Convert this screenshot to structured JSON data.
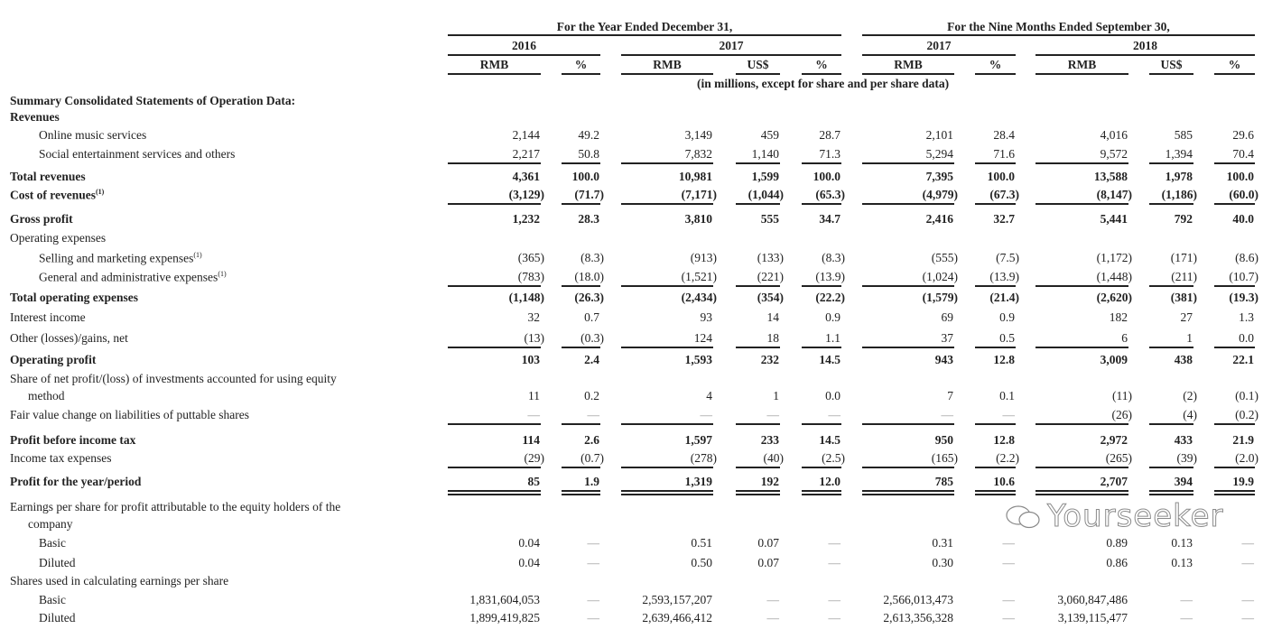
{
  "header": {
    "group1": "For the Year Ended December 31,",
    "group2": "For the Nine Months Ended September 30,",
    "years": [
      "2016",
      "2017",
      "2017",
      "2018"
    ],
    "columns": [
      "RMB",
      "%",
      "RMB",
      "US$",
      "%",
      "RMB",
      "%",
      "RMB",
      "US$",
      "%"
    ],
    "note": "(in millions, except for share and per share data)"
  },
  "rows": [
    {
      "label": "Summary Consolidated Statements of Operation Data:",
      "bold": true
    },
    {
      "label": "Revenues",
      "bold": true
    },
    {
      "label": "Online music services",
      "indent": true,
      "values": [
        "2,144",
        "49.2",
        "3,149",
        "459",
        "28.7",
        "2,101",
        "28.4",
        "4,016",
        "585",
        "29.6"
      ]
    },
    {
      "label": "Social entertainment services and others",
      "indent": true,
      "rule": "single",
      "values": [
        "2,217",
        "50.8",
        "7,832",
        "1,140",
        "71.3",
        "5,294",
        "71.6",
        "9,572",
        "1,394",
        "70.4"
      ]
    },
    {
      "label": "Total revenues",
      "bold": true,
      "values": [
        "4,361",
        "100.0",
        "10,981",
        "1,599",
        "100.0",
        "7,395",
        "100.0",
        "13,588",
        "1,978",
        "100.0"
      ]
    },
    {
      "label": "Cost of revenues",
      "sup": "(1)",
      "bold": true,
      "rule": "single",
      "values": [
        "(3,129)",
        "(71.7)",
        "(7,171)",
        "(1,044)",
        "(65.3)",
        "(4,979)",
        "(67.3)",
        "(8,147)",
        "(1,186)",
        "(60.0)"
      ]
    },
    {
      "label": "Gross profit",
      "bold": true,
      "values": [
        "1,232",
        "28.3",
        "3,810",
        "555",
        "34.7",
        "2,416",
        "32.7",
        "5,441",
        "792",
        "40.0"
      ]
    },
    {
      "label": "Operating expenses"
    },
    {
      "label": "Selling and marketing expenses",
      "sup": "(1)",
      "indent": true,
      "values": [
        "(365)",
        "(8.3)",
        "(913)",
        "(133)",
        "(8.3)",
        "(555)",
        "(7.5)",
        "(1,172)",
        "(171)",
        "(8.6)"
      ]
    },
    {
      "label": "General and administrative expenses",
      "sup": "(1)",
      "indent": true,
      "rule": "single",
      "values": [
        "(783)",
        "(18.0)",
        "(1,521)",
        "(221)",
        "(13.9)",
        "(1,024)",
        "(13.9)",
        "(1,448)",
        "(211)",
        "(10.7)"
      ]
    },
    {
      "label": "Total operating expenses",
      "bold": true,
      "values": [
        "(1,148)",
        "(26.3)",
        "(2,434)",
        "(354)",
        "(22.2)",
        "(1,579)",
        "(21.4)",
        "(2,620)",
        "(381)",
        "(19.3)"
      ]
    },
    {
      "label": "Interest income",
      "values": [
        "32",
        "0.7",
        "93",
        "14",
        "0.9",
        "69",
        "0.9",
        "182",
        "27",
        "1.3"
      ]
    },
    {
      "label": "Other (losses)/gains, net",
      "rule": "single",
      "values": [
        "(13)",
        "(0.3)",
        "124",
        "18",
        "1.1",
        "37",
        "0.5",
        "6",
        "1",
        "0.0"
      ]
    },
    {
      "label": "Operating profit",
      "bold": true,
      "values": [
        "103",
        "2.4",
        "1,593",
        "232",
        "14.5",
        "943",
        "12.8",
        "3,009",
        "438",
        "22.1"
      ]
    },
    {
      "label": "Share of net profit/(loss) of investments accounted for using equity",
      "label2": "method",
      "values": [
        "11",
        "0.2",
        "4",
        "1",
        "0.0",
        "7",
        "0.1",
        "(11)",
        "(2)",
        "(0.1)"
      ]
    },
    {
      "label": "Fair value change on liabilities of puttable shares",
      "rule": "single",
      "values": [
        "—",
        "—",
        "—",
        "—",
        "—",
        "—",
        "—",
        "(26)",
        "(4)",
        "(0.2)"
      ]
    },
    {
      "label": "Profit before income tax",
      "bold": true,
      "values": [
        "114",
        "2.6",
        "1,597",
        "233",
        "14.5",
        "950",
        "12.8",
        "2,972",
        "433",
        "21.9"
      ]
    },
    {
      "label": "Income tax expenses",
      "rule": "single",
      "values": [
        "(29)",
        "(0.7)",
        "(278)",
        "(40)",
        "(2.5)",
        "(165)",
        "(2.2)",
        "(265)",
        "(39)",
        "(2.0)"
      ]
    },
    {
      "label": "Profit for the year/period",
      "bold": true,
      "rule": "double",
      "values": [
        "85",
        "1.9",
        "1,319",
        "192",
        "12.0",
        "785",
        "10.6",
        "2,707",
        "394",
        "19.9"
      ]
    },
    {
      "label": "Earnings per share for profit attributable to the equity holders of the",
      "label2": "company"
    },
    {
      "label": "Basic",
      "indent": true,
      "values": [
        "0.04",
        "—",
        "0.51",
        "0.07",
        "—",
        "0.31",
        "—",
        "0.89",
        "0.13",
        "—"
      ]
    },
    {
      "label": "Diluted",
      "indent": true,
      "values": [
        "0.04",
        "—",
        "0.50",
        "0.07",
        "—",
        "0.30",
        "—",
        "0.86",
        "0.13",
        "—"
      ]
    },
    {
      "label": "Shares used in calculating earnings per share"
    },
    {
      "label": "Basic",
      "indent": true,
      "values": [
        "1,831,604,053",
        "—",
        "2,593,157,207",
        "—",
        "—",
        "2,566,013,473",
        "—",
        "3,060,847,486",
        "—",
        "—"
      ]
    },
    {
      "label": "Diluted",
      "indent": true,
      "values": [
        "1,899,419,825",
        "—",
        "2,639,466,412",
        "—",
        "—",
        "2,613,356,328",
        "—",
        "3,139,115,477",
        "—",
        "—"
      ]
    }
  ],
  "watermark": "Yourseeker",
  "colors": {
    "text": "#222222",
    "rule": "#222222",
    "background": "#ffffff"
  }
}
